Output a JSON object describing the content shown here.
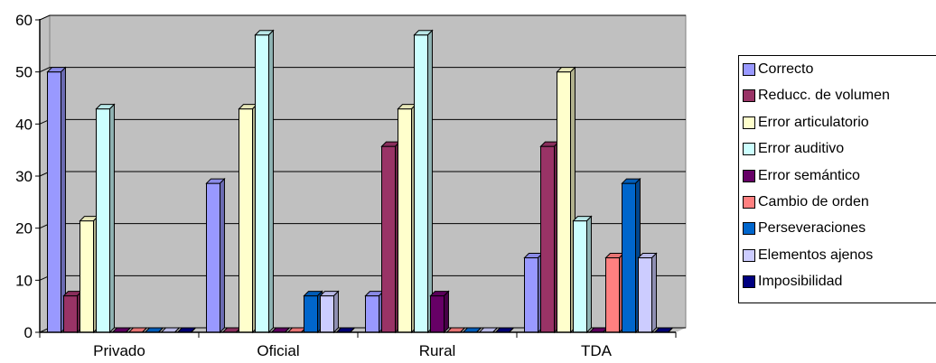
{
  "chart_data": {
    "type": "bar",
    "categories": [
      "Privado",
      "Oficial",
      "Rural",
      "TDA"
    ],
    "ylim": [
      0,
      60
    ],
    "yticks": [
      0,
      10,
      20,
      30,
      40,
      50,
      60
    ],
    "grid": true,
    "legend_position": "right",
    "series": [
      {
        "name": "Correcto",
        "color": "#9999ff",
        "values": [
          50,
          28.6,
          7,
          14.3
        ]
      },
      {
        "name": "Reducc. de volumen",
        "color": "#993366",
        "values": [
          7,
          0,
          35.7,
          35.7
        ]
      },
      {
        "name": "Error articulatorio",
        "color": "#ffffcc",
        "values": [
          21.4,
          42.9,
          42.9,
          50
        ]
      },
      {
        "name": "Error auditivo",
        "color": "#ccffff",
        "values": [
          42.9,
          57.1,
          57.1,
          21.4
        ]
      },
      {
        "name": "Error semántico",
        "color": "#660066",
        "values": [
          0,
          0,
          7,
          0
        ]
      },
      {
        "name": "Cambio de orden",
        "color": "#ff8080",
        "values": [
          0,
          0,
          0,
          14.3
        ]
      },
      {
        "name": "Perseveraciones",
        "color": "#0066cc",
        "values": [
          0,
          7,
          0,
          28.6
        ]
      },
      {
        "name": "Elementos ajenos",
        "color": "#ccccff",
        "values": [
          0,
          7,
          0,
          14.3
        ]
      },
      {
        "name": "Imposibilidad",
        "color": "#000080",
        "values": [
          0,
          0,
          0,
          0
        ]
      }
    ],
    "plot_background": "#c0c0c0"
  }
}
